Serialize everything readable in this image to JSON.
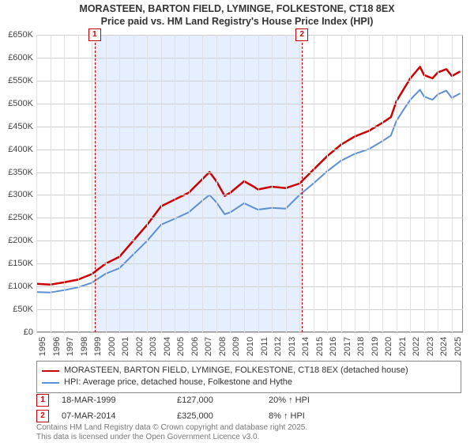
{
  "title_line1": "MORASTEEN, BARTON FIELD, LYMINGE, FOLKESTONE, CT18 8EX",
  "title_line2": "Price paid vs. HM Land Registry's House Price Index (HPI)",
  "chart": {
    "type": "line",
    "background_color": "#ffffff",
    "grid_color": "#cfcfcf",
    "grid_color_v": "#e0e0e0",
    "shade_color": "#e5efff",
    "axis_border_color": "#888888",
    "y": {
      "min": 0,
      "max": 650000,
      "step": 50000,
      "prefix": "£",
      "suffix": "K",
      "divisor": 1000
    },
    "x": {
      "min": 1995,
      "max": 2025.8,
      "ticks": [
        1995,
        1996,
        1997,
        1998,
        1999,
        2000,
        2001,
        2002,
        2003,
        2004,
        2005,
        2006,
        2007,
        2008,
        2009,
        2010,
        2011,
        2012,
        2013,
        2014,
        2015,
        2016,
        2017,
        2018,
        2019,
        2020,
        2021,
        2022,
        2023,
        2024,
        2025
      ]
    },
    "shade": {
      "from": 1999.21,
      "to": 2014.18
    },
    "markers": [
      {
        "id": "1",
        "x": 1999.21,
        "color": "#cc0000"
      },
      {
        "id": "2",
        "x": 2014.18,
        "color": "#cc0000"
      }
    ],
    "series": [
      {
        "name": "MORASTEEN, BARTON FIELD, LYMINGE, FOLKESTONE, CT18 8EX (detached house)",
        "color": "#cc0000",
        "line_width": 2.5,
        "points": [
          [
            1995,
            106000
          ],
          [
            1996,
            104000
          ],
          [
            1997,
            109000
          ],
          [
            1998,
            115000
          ],
          [
            1999,
            127000
          ],
          [
            2000,
            150000
          ],
          [
            2001,
            165000
          ],
          [
            2002,
            200000
          ],
          [
            2003,
            235000
          ],
          [
            2004,
            275000
          ],
          [
            2005,
            290000
          ],
          [
            2006,
            305000
          ],
          [
            2007,
            335000
          ],
          [
            2007.5,
            350000
          ],
          [
            2008,
            330000
          ],
          [
            2008.6,
            298000
          ],
          [
            2009,
            305000
          ],
          [
            2010,
            330000
          ],
          [
            2010.7,
            318000
          ],
          [
            2011,
            312000
          ],
          [
            2012,
            318000
          ],
          [
            2013,
            315000
          ],
          [
            2014,
            325000
          ],
          [
            2015,
            355000
          ],
          [
            2016,
            385000
          ],
          [
            2017,
            410000
          ],
          [
            2018,
            428000
          ],
          [
            2019,
            440000
          ],
          [
            2020,
            458000
          ],
          [
            2020.6,
            470000
          ],
          [
            2021,
            505000
          ],
          [
            2021.7,
            540000
          ],
          [
            2022,
            555000
          ],
          [
            2022.7,
            580000
          ],
          [
            2023,
            562000
          ],
          [
            2023.6,
            555000
          ],
          [
            2024,
            568000
          ],
          [
            2024.6,
            575000
          ],
          [
            2025,
            560000
          ],
          [
            2025.6,
            570000
          ]
        ]
      },
      {
        "name": "HPI: Average price, detached house, Folkestone and Hythe",
        "color": "#5b8fd6",
        "line_width": 2,
        "points": [
          [
            1995,
            88000
          ],
          [
            1996,
            87000
          ],
          [
            1997,
            92000
          ],
          [
            1998,
            98000
          ],
          [
            1999,
            108000
          ],
          [
            2000,
            128000
          ],
          [
            2001,
            140000
          ],
          [
            2002,
            170000
          ],
          [
            2003,
            200000
          ],
          [
            2004,
            235000
          ],
          [
            2005,
            248000
          ],
          [
            2006,
            262000
          ],
          [
            2007,
            288000
          ],
          [
            2007.5,
            300000
          ],
          [
            2008,
            284000
          ],
          [
            2008.6,
            258000
          ],
          [
            2009,
            262000
          ],
          [
            2010,
            282000
          ],
          [
            2010.7,
            272000
          ],
          [
            2011,
            268000
          ],
          [
            2012,
            272000
          ],
          [
            2013,
            270000
          ],
          [
            2014,
            300000
          ],
          [
            2015,
            325000
          ],
          [
            2016,
            352000
          ],
          [
            2017,
            375000
          ],
          [
            2018,
            390000
          ],
          [
            2019,
            400000
          ],
          [
            2020,
            418000
          ],
          [
            2020.6,
            430000
          ],
          [
            2021,
            462000
          ],
          [
            2021.7,
            495000
          ],
          [
            2022,
            508000
          ],
          [
            2022.7,
            530000
          ],
          [
            2023,
            515000
          ],
          [
            2023.6,
            508000
          ],
          [
            2024,
            520000
          ],
          [
            2024.6,
            528000
          ],
          [
            2025,
            512000
          ],
          [
            2025.6,
            522000
          ]
        ]
      }
    ]
  },
  "legend_label_1": "MORASTEEN, BARTON FIELD, LYMINGE, FOLKESTONE, CT18 8EX (detached house)",
  "legend_label_2": "HPI: Average price, detached house, Folkestone and Hythe",
  "rows": [
    {
      "id": "1",
      "color": "#cc0000",
      "date": "18-MAR-1999",
      "price": "£127,000",
      "hpi": "20% ↑ HPI"
    },
    {
      "id": "2",
      "color": "#cc0000",
      "date": "07-MAR-2014",
      "price": "£325,000",
      "hpi": "8% ↑ HPI"
    }
  ],
  "footnote_line1": "Contains HM Land Registry data © Crown copyright and database right 2025.",
  "footnote_line2": "This data is licensed under the Open Government Licence v3.0."
}
